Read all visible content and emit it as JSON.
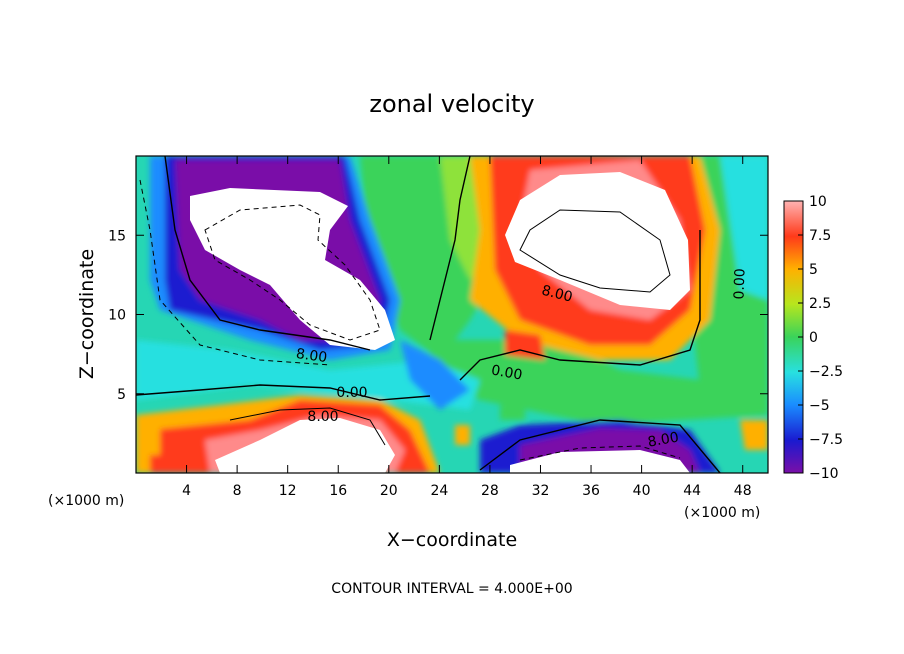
{
  "chart_data": {
    "type": "heatmap",
    "title": "zonal velocity",
    "xlabel": "X−coordinate",
    "ylabel": "Z−coordinate",
    "x_unit_left": "(×1000 m)",
    "x_unit_right": "(×1000 m)",
    "xlim": [
      0,
      50
    ],
    "ylim": [
      0,
      20
    ],
    "x_ticks": [
      "4",
      "8",
      "12",
      "16",
      "20",
      "24",
      "28",
      "32",
      "36",
      "40",
      "44",
      "48"
    ],
    "y_ticks": [
      "5",
      "10",
      "15"
    ],
    "colorbar": {
      "ticks": [
        "10",
        "7.5",
        "5",
        "2.5",
        "0",
        "−2.5",
        "−5",
        "−7.5",
        "−10"
      ],
      "range": [
        -10,
        10
      ],
      "colors": [
        "#7a0fa8",
        "#1a1ad0",
        "#1a8cff",
        "#28e0e0",
        "#3ad35a",
        "#b6e61e",
        "#ffb000",
        "#ff3a1a",
        "#ffb3b3"
      ]
    },
    "contour_labels": [
      {
        "text": "8.00"
      },
      {
        "text": "8.00"
      },
      {
        "text": "0.00"
      },
      {
        "text": "0.00"
      },
      {
        "text": "8.00"
      },
      {
        "text": "0.00"
      },
      {
        "text": "8.00"
      }
    ],
    "footer": "CONTOUR INTERVAL = 4.000E+00",
    "grid": false
  }
}
